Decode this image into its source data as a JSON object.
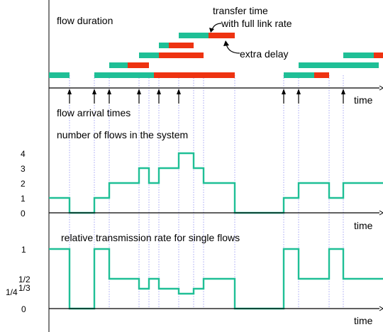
{
  "colors": {
    "transfer": "#1fbf96",
    "delay": "#ee3311",
    "guide": "#8f8ff0",
    "axis": "#000000"
  },
  "panel_top": {
    "title": "flow duration",
    "annotation_transfer": [
      "transfer time",
      "with full link rate"
    ],
    "annotation_delay": "extra delay",
    "time_label": "time",
    "subtitle": "flow arrival times"
  },
  "panel_middle": {
    "title": "number of flows in the system",
    "time_label": "time",
    "y_ticks": [
      "4",
      "3",
      "2",
      "1",
      "0"
    ]
  },
  "panel_bottom": {
    "title": "relative transmission rate for single flows",
    "time_label": "time",
    "y_tick_1": "1",
    "y_tick_half": "1/2",
    "y_tick_third": "1/3",
    "y_tick_quarter": "1/4",
    "y_tick_0": "0"
  },
  "chart_data": {
    "type": "diagram",
    "arrival_times": [
      98,
      133,
      154,
      196,
      224,
      252,
      400,
      421,
      484
    ],
    "flows": [
      {
        "transfer": [
          69,
          98
        ],
        "delay": null
      },
      {
        "transfer": [
          133,
          217
        ],
        "delay": [
          217,
          331
        ]
      },
      {
        "transfer": [
          154,
          180
        ],
        "delay": [
          180,
          210
        ]
      },
      {
        "transfer": [
          196,
          224
        ],
        "delay": [
          224,
          287
        ]
      },
      {
        "transfer": [
          224,
          238
        ],
        "delay": [
          238,
          273
        ]
      },
      {
        "transfer": [
          252,
          294
        ],
        "delay": [
          294,
          331
        ]
      },
      {
        "transfer": [
          400,
          422
        ],
        "delay": null
      },
      {
        "transfer": [
          421,
          443
        ],
        "delay": [
          443,
          464
        ]
      },
      {
        "transfer": [
          421,
          534
        ],
        "delay": null
      },
      {
        "transfer": [
          484,
          527
        ],
        "delay": [
          527,
          540
        ]
      }
    ],
    "flow_count_steps": [
      {
        "t": 69,
        "v": 1
      },
      {
        "t": 98,
        "v": 0
      },
      {
        "t": 133,
        "v": 1
      },
      {
        "t": 154,
        "v": 2
      },
      {
        "t": 196,
        "v": 3
      },
      {
        "t": 210,
        "v": 2
      },
      {
        "t": 224,
        "v": 3
      },
      {
        "t": 252,
        "v": 4
      },
      {
        "t": 273,
        "v": 3
      },
      {
        "t": 287,
        "v": 2
      },
      {
        "t": 331,
        "v": 0
      },
      {
        "t": 400,
        "v": 1
      },
      {
        "t": 421,
        "v": 2
      },
      {
        "t": 464,
        "v": 1
      },
      {
        "t": 484,
        "v": 2
      },
      {
        "t": 540,
        "v": 2
      }
    ],
    "rate_levels": {
      "0": 0,
      "1": 1,
      "2": 0.5,
      "3": 0.3333,
      "4": 0.25
    }
  }
}
